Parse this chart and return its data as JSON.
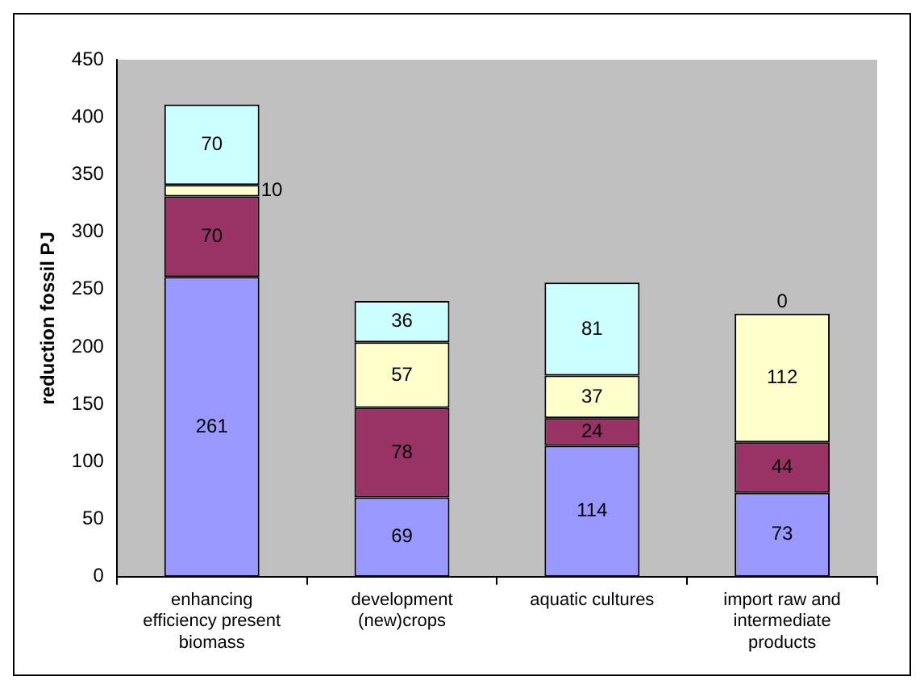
{
  "chart_data": {
    "type": "bar",
    "stacked": true,
    "ylabel": "reduction fossil PJ",
    "categories": [
      "enhancing efficiency present biomass",
      "development (new)crops",
      "aquatic cultures",
      "import raw and intermediate products"
    ],
    "series": [
      {
        "color": "#9999ff",
        "values": [
          261,
          69,
          114,
          73
        ]
      },
      {
        "color": "#993366",
        "values": [
          70,
          78,
          24,
          44
        ]
      },
      {
        "color": "#ffffcc",
        "values": [
          10,
          57,
          37,
          112
        ]
      },
      {
        "color": "#ccffff",
        "values": [
          70,
          36,
          81,
          0
        ]
      }
    ],
    "ylim": [
      0,
      450
    ],
    "yticks": [
      0,
      50,
      100,
      150,
      200,
      250,
      300,
      350,
      400,
      450
    ],
    "grid": false,
    "legend": false,
    "data_labels": true
  }
}
